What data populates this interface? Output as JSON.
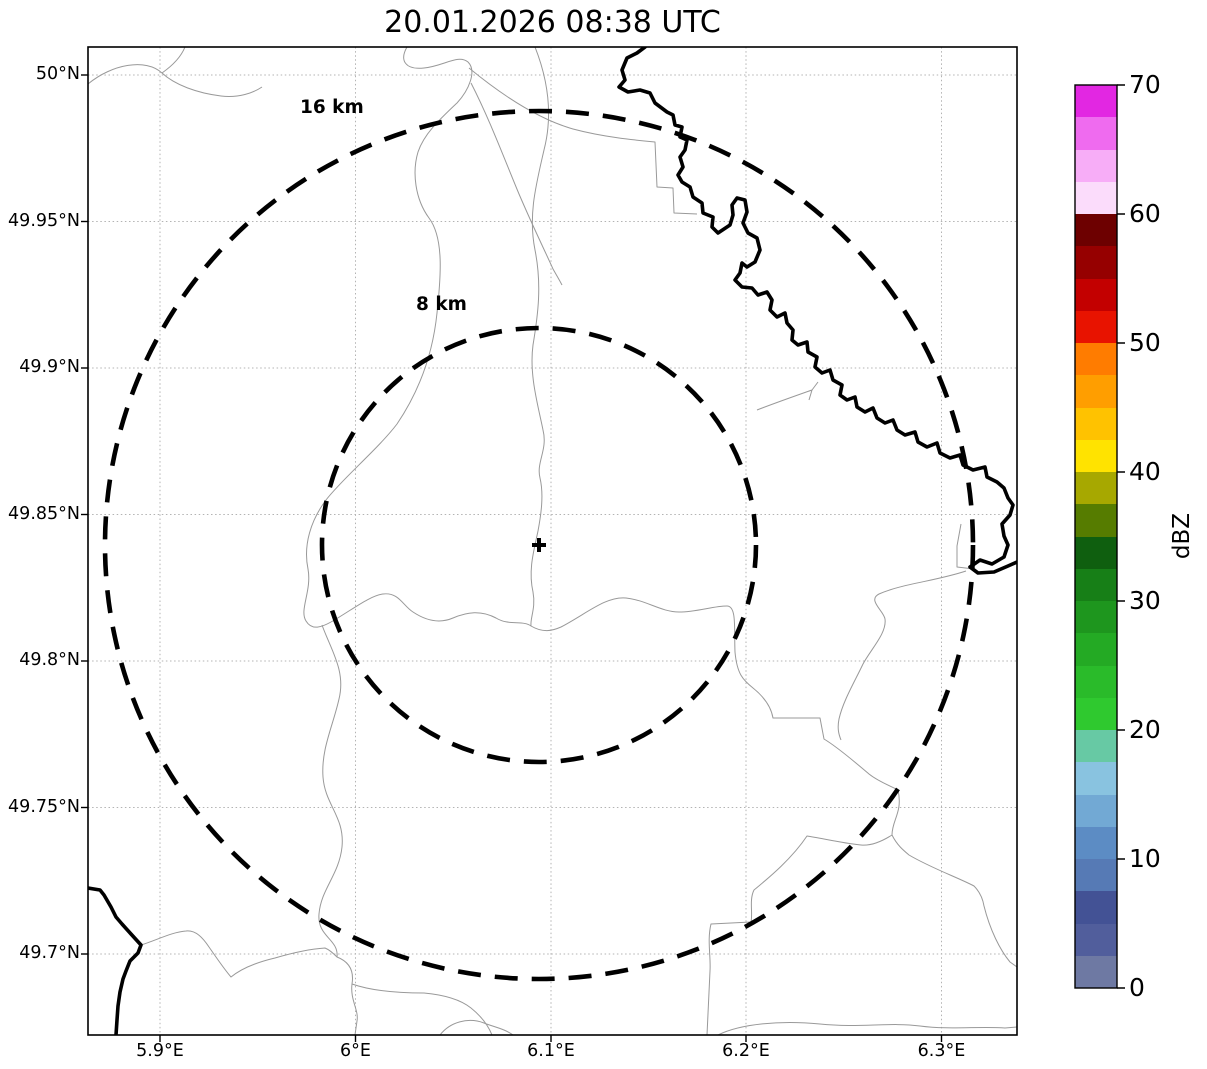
{
  "title": "20.01.2026 08:38 UTC",
  "map": {
    "lat_ticks": [
      "50°N",
      "49.95°N",
      "49.9°N",
      "49.85°N",
      "49.8°N",
      "49.75°N",
      "49.7°N"
    ],
    "lon_ticks": [
      "5.9°E",
      "6°E",
      "6.1°E",
      "6.2°E",
      "6.3°E"
    ],
    "range_ring_labels": {
      "outer": "16 km",
      "inner": "8 km"
    },
    "range_rings_km": [
      16,
      8
    ],
    "marker_icon": "radar-site-cross"
  },
  "colorbar": {
    "label": "dBZ",
    "tick_labels": [
      "70",
      "60",
      "50",
      "40",
      "30",
      "20",
      "10",
      "0"
    ],
    "range": [
      0,
      70
    ],
    "band_step_dbz": 2.5,
    "band_colors_bottom_to_top": [
      "#6e79a3",
      "#515e9c",
      "#435295",
      "#567ab5",
      "#5c8cc4",
      "#72a9d4",
      "#89c3e0",
      "#67c9a4",
      "#2fc92f",
      "#2abb2a",
      "#24aa24",
      "#1e961e",
      "#177f17",
      "#0f5f0f",
      "#567c00",
      "#a7a800",
      "#ffe300",
      "#ffc200",
      "#ff9e00",
      "#ff7c00",
      "#e81300",
      "#c30000",
      "#960000",
      "#6d0000",
      "#fbdcfb",
      "#f7adf7",
      "#ef6bef",
      "#e227e2"
    ]
  },
  "style_colors": {
    "background": "#ffffff",
    "grid": "#b3b3b3",
    "admin_boundary": "#999999",
    "border_river": "#000000",
    "range_ring": "#000000",
    "text": "#000000"
  },
  "chart_data": {
    "type": "heatmap",
    "title": "20.01.2026 08:38 UTC",
    "x_tick_labels": [
      "5.9°E",
      "6°E",
      "6.1°E",
      "6.2°E",
      "6.3°E"
    ],
    "y_tick_labels": [
      "50°N",
      "49.95°N",
      "49.9°N",
      "49.85°N",
      "49.8°N",
      "49.75°N",
      "49.7°N"
    ],
    "x_range_deg_e": [
      5.86,
      6.34
    ],
    "y_range_deg_n": [
      49.67,
      50.01
    ],
    "colorbar_label": "dBZ",
    "colorbar_range": [
      0,
      70
    ],
    "colorbar_ticks": [
      0,
      10,
      20,
      30,
      40,
      50,
      60,
      70
    ],
    "range_rings_km": [
      8,
      16
    ],
    "reflectivity_echoes": [],
    "grid": true,
    "legend_position": "right-colorbar"
  }
}
